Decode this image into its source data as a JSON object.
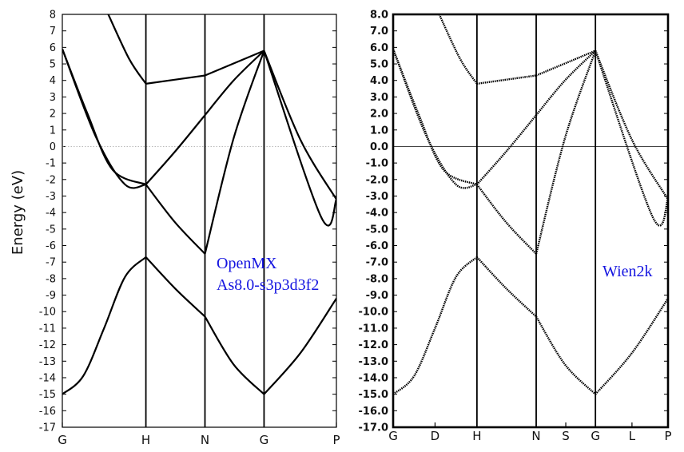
{
  "chart_data": [
    {
      "type": "line",
      "ylabel": "Energy (eV)",
      "ylim": [
        -17,
        8
      ],
      "yticks": [
        "8",
        "7",
        "6",
        "5",
        "4",
        "3",
        "2",
        "1",
        "0",
        "-1",
        "-2",
        "-3",
        "-4",
        "-5",
        "-6",
        "-7",
        "-8",
        "-9",
        "-10",
        "-11",
        "-12",
        "-13",
        "-14",
        "-15",
        "-16",
        "-17"
      ],
      "kpoints": [
        {
          "label": "G",
          "x": 0
        },
        {
          "label": "H",
          "x": 1
        },
        {
          "label": "N",
          "x": 1.707
        },
        {
          "label": "G",
          "x": 2.414
        },
        {
          "label": "P",
          "x": 3.28
        }
      ],
      "fermi_level": 0,
      "annotation": [
        "OpenMX",
        "As8.0-s3p3d3f2"
      ],
      "series": [
        {
          "values_GH": [
            [
              0,
              -15.0
            ],
            [
              0.25,
              -13.9
            ],
            [
              0.5,
              -11.0
            ],
            [
              0.75,
              -7.9
            ],
            [
              1,
              -6.7
            ]
          ],
          "values_HN": [
            [
              1,
              -6.7
            ],
            [
              1.35,
              -8.6
            ],
            [
              1.707,
              -10.3
            ]
          ],
          "values_NG": [
            [
              1.707,
              -10.3
            ],
            [
              2.05,
              -13.2
            ],
            [
              2.414,
              -15.0
            ]
          ],
          "values_GP": [
            [
              2.414,
              -15.0
            ],
            [
              2.85,
              -12.5
            ],
            [
              3.28,
              -9.2
            ]
          ]
        },
        {
          "values_GH": [
            [
              0,
              5.9
            ],
            [
              0.3,
              2.0
            ],
            [
              0.6,
              -1.4
            ],
            [
              1,
              -2.3
            ]
          ],
          "values_HN": [
            [
              1,
              -2.3
            ],
            [
              1.35,
              -4.6
            ],
            [
              1.707,
              -6.5
            ]
          ],
          "values_NG": [
            [
              1.707,
              -6.5
            ],
            [
              2.05,
              0.5
            ],
            [
              2.414,
              5.8
            ]
          ],
          "values_GP": [
            [
              2.414,
              5.8
            ],
            [
              2.85,
              0.4
            ],
            [
              3.28,
              -3.2
            ]
          ]
        },
        {
          "values_GH": [
            [
              0,
              5.9
            ],
            [
              0.4,
              0.6
            ],
            [
              0.75,
              -2.3
            ],
            [
              1,
              -2.3
            ]
          ],
          "values_HN": [
            [
              1,
              -2.3
            ],
            [
              1.35,
              -0.3
            ],
            [
              1.707,
              1.9
            ]
          ],
          "values_NG": [
            [
              1.707,
              1.9
            ],
            [
              2.05,
              4.0
            ],
            [
              2.414,
              5.8
            ]
          ],
          "values_GP": [
            [
              2.414,
              5.8
            ],
            [
              3.1,
              -4.3
            ],
            [
              3.28,
              -3.2
            ]
          ]
        },
        {
          "values_GH": [
            [
              0.55,
              8
            ],
            [
              0.8,
              5.3
            ],
            [
              1,
              3.8
            ]
          ],
          "values_HN": [
            [
              1,
              3.8
            ],
            [
              1.707,
              4.3
            ]
          ],
          "values_NG": [
            [
              1.707,
              4.3
            ],
            [
              2.414,
              5.8
            ]
          ]
        }
      ]
    },
    {
      "type": "line",
      "ylim": [
        -17,
        8
      ],
      "yticks": [
        "8.0",
        "7.0",
        "6.0",
        "5.0",
        "4.0",
        "3.0",
        "2.0",
        "1.0",
        "0.0",
        "-1.0",
        "-2.0",
        "-3.0",
        "-4.0",
        "-5.0",
        "-6.0",
        "-7.0",
        "-8.0",
        "-9.0",
        "-10.0",
        "-11.0",
        "-12.0",
        "-13.0",
        "-14.0",
        "-15.0",
        "-16.0",
        "-17.0"
      ],
      "kpoints": [
        {
          "label": "G",
          "x": 0
        },
        {
          "label": "D",
          "x": 0.5
        },
        {
          "label": "H",
          "x": 1
        },
        {
          "label": "N",
          "x": 1.707
        },
        {
          "label": "S",
          "x": 2.06
        },
        {
          "label": "G",
          "x": 2.414
        },
        {
          "label": "L",
          "x": 2.85
        },
        {
          "label": "P",
          "x": 3.28
        }
      ],
      "fermi_level": 0,
      "annotation": [
        "Wien2k"
      ]
    }
  ]
}
